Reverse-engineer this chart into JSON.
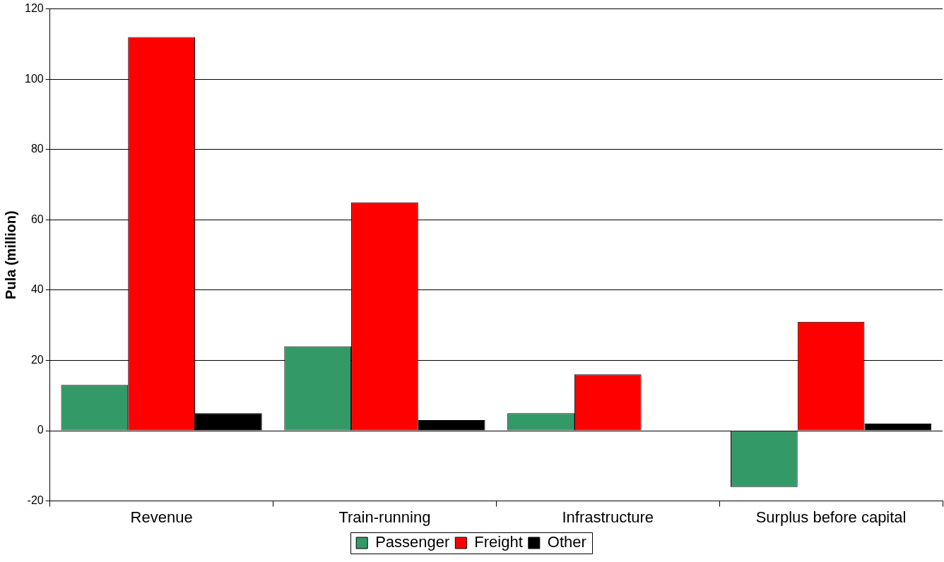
{
  "chart_data": {
    "type": "bar",
    "ylabel": "Pula (million)",
    "categories": [
      "Revenue",
      "Train-running",
      "Infrastructure",
      "Surplus before capital"
    ],
    "series": [
      {
        "name": "Passenger",
        "color": "#339966",
        "values": [
          13,
          24,
          5,
          -16
        ]
      },
      {
        "name": "Freight",
        "color": "#ff0000",
        "values": [
          112,
          65,
          16,
          31
        ]
      },
      {
        "name": "Other",
        "color": "#000000",
        "values": [
          5,
          3,
          null,
          2
        ]
      }
    ],
    "ylim": [
      -20,
      120
    ],
    "yticks": [
      -20,
      0,
      20,
      40,
      60,
      80,
      100,
      120
    ],
    "grid": "y",
    "legend": "bottom"
  }
}
